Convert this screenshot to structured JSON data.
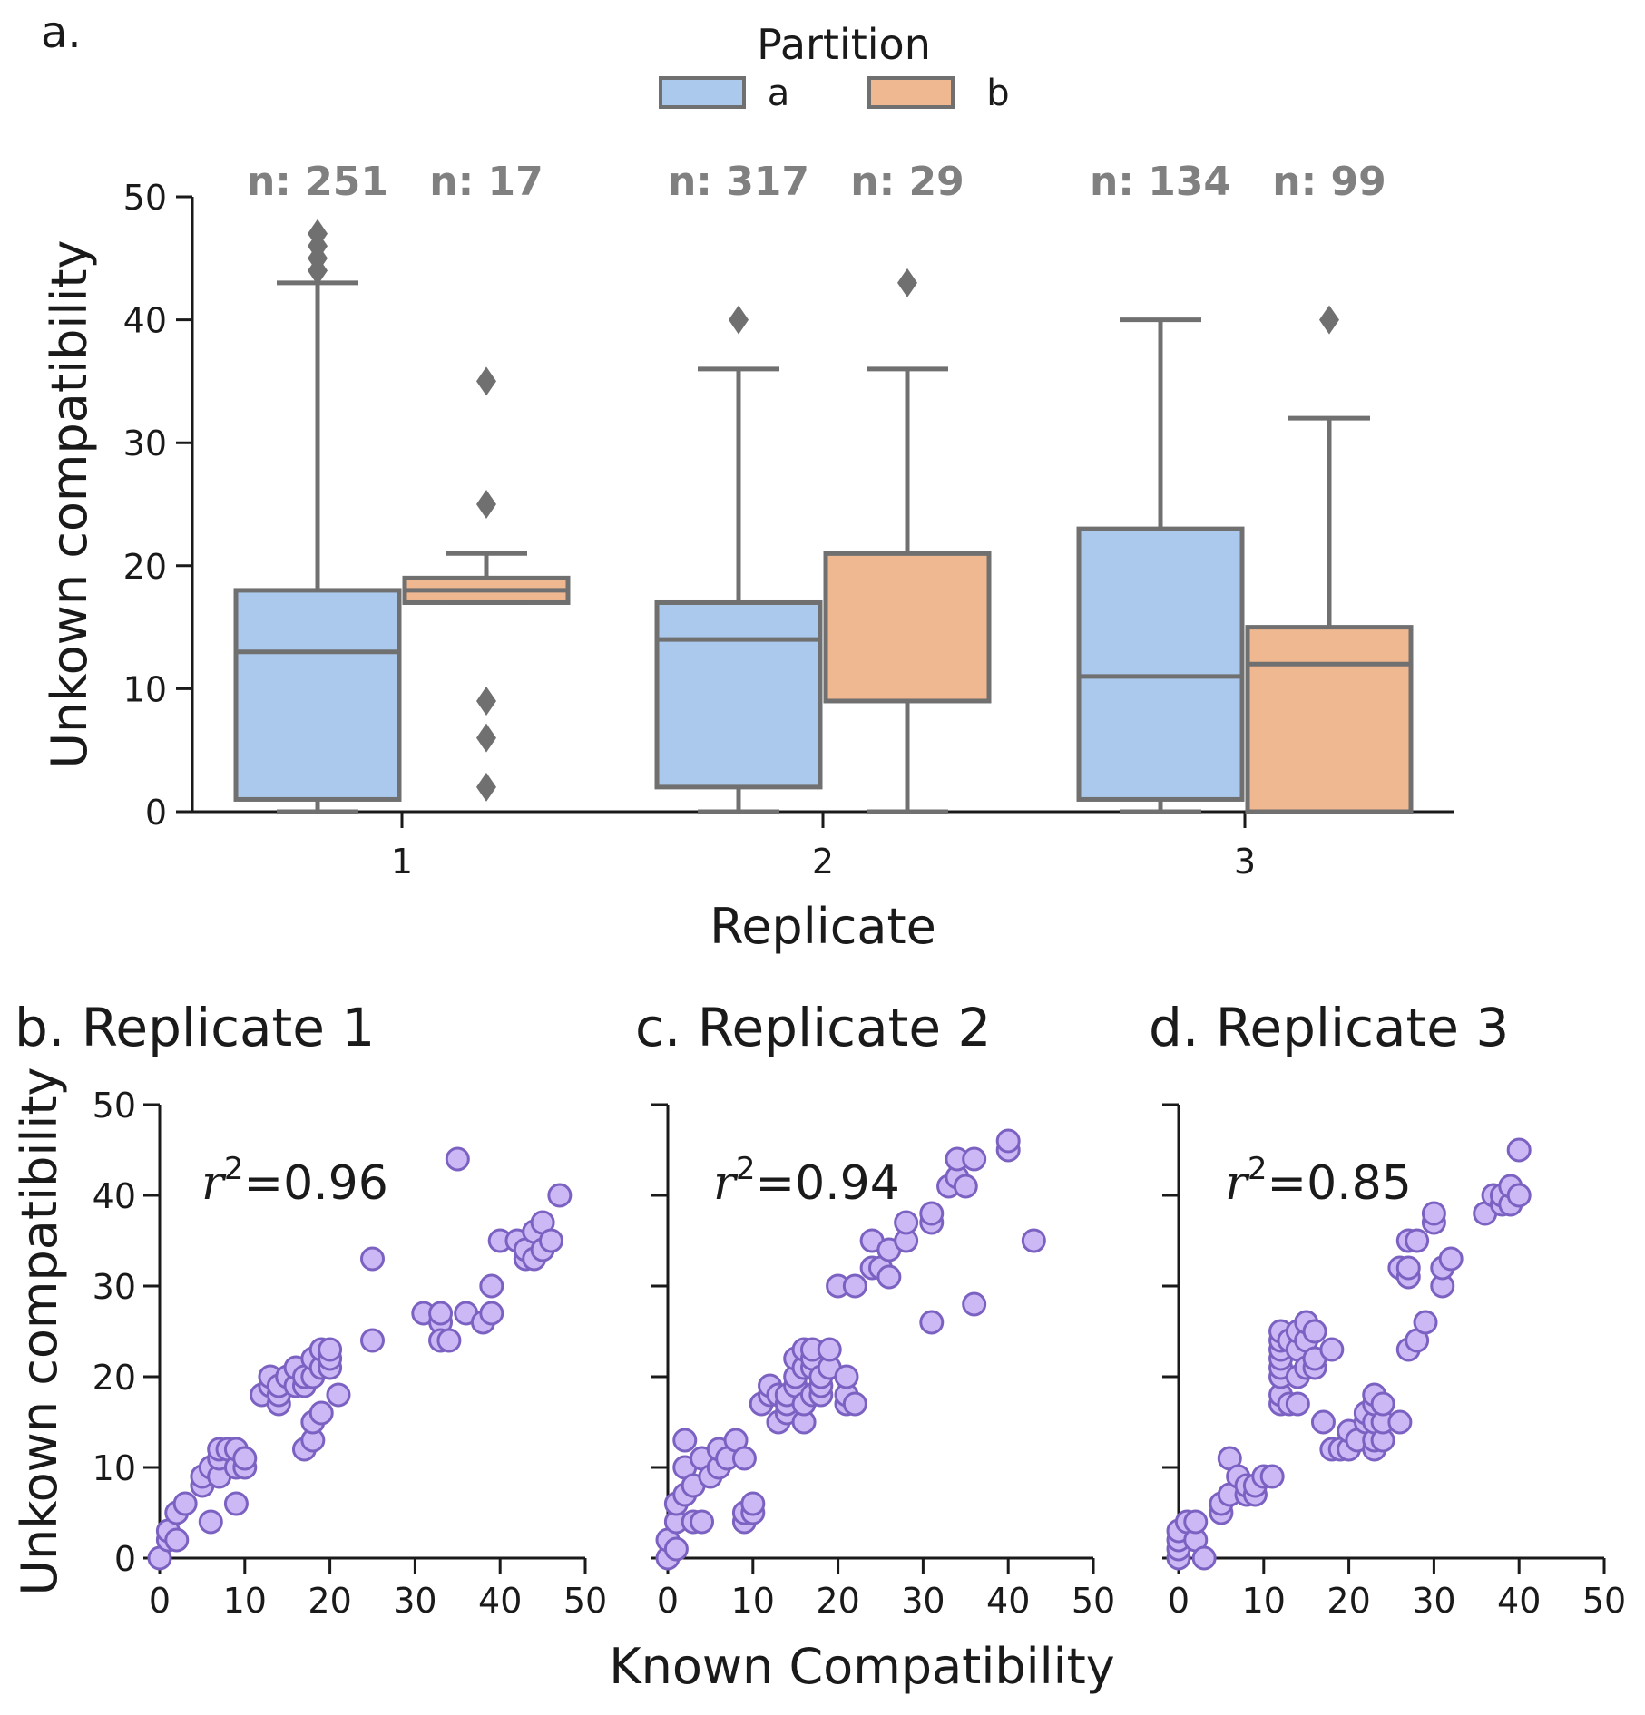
{
  "panel_a": {
    "panel_label": "a.",
    "legend_title": "Partition",
    "legend_labels": [
      "a",
      "b"
    ],
    "colors": {
      "a": "#abc9ec",
      "b": "#f0b890",
      "edge": "#707070",
      "axis": "#1a1a1a",
      "scatter_fill": "#cbb8f5",
      "scatter_edge": "#7b62c2",
      "n_label": "#808080"
    }
  },
  "panel_b": {
    "title": "b. Replicate 1",
    "r2_label": "=0.96"
  },
  "panel_c": {
    "title": "c. Replicate 2",
    "r2_label": "=0.94"
  },
  "panel_d": {
    "title": "d. Replicate 3",
    "r2_label": "=0.85"
  },
  "chart_data": [
    {
      "type": "box",
      "xlabel": "Replicate",
      "ylabel": "Unkown compatibility",
      "ylim": [
        0,
        50
      ],
      "yticks": [
        0,
        10,
        20,
        30,
        40,
        50
      ],
      "categories": [
        "1",
        "2",
        "3"
      ],
      "series": [
        {
          "name": "a",
          "boxes": [
            {
              "category": "1",
              "n_label": "n: 251",
              "whisker_low": 0,
              "q1": 1,
              "median": 13,
              "q3": 18,
              "whisker_high": 43,
              "outliers": [
                44,
                45,
                46,
                47
              ]
            },
            {
              "category": "2",
              "n_label": "n: 317",
              "whisker_low": 0,
              "q1": 2,
              "median": 14,
              "q3": 17,
              "whisker_high": 36,
              "outliers": [
                40
              ]
            },
            {
              "category": "3",
              "n_label": "n: 134",
              "whisker_low": 0,
              "q1": 1,
              "median": 11,
              "q3": 23,
              "whisker_high": 40,
              "outliers": []
            }
          ]
        },
        {
          "name": "b",
          "boxes": [
            {
              "category": "1",
              "n_label": "n: 17",
              "whisker_low": 17,
              "q1": 17,
              "median": 18,
              "q3": 19,
              "whisker_high": 21,
              "outliers": [
                2,
                6,
                9,
                25,
                35
              ]
            },
            {
              "category": "2",
              "n_label": "n: 29",
              "whisker_low": 0,
              "q1": 9,
              "median": 21,
              "q3": 21,
              "whisker_high": 36,
              "outliers": [
                43
              ]
            },
            {
              "category": "3",
              "n_label": "n: 99",
              "whisker_low": 0,
              "q1": 0,
              "median": 12,
              "q3": 15,
              "whisker_high": 32,
              "outliers": [
                40
              ]
            }
          ]
        }
      ]
    },
    {
      "type": "scatter",
      "title": "b. Replicate 1",
      "ylabel": "Unkown compatibility",
      "xlim": [
        0,
        50
      ],
      "ylim": [
        0,
        50
      ],
      "xticks": [
        0,
        10,
        20,
        30,
        40,
        50
      ],
      "yticks": [
        0,
        10,
        20,
        30,
        40,
        50
      ],
      "points": [
        [
          0,
          0
        ],
        [
          1,
          2
        ],
        [
          1,
          3
        ],
        [
          2,
          5
        ],
        [
          2,
          2
        ],
        [
          3,
          6
        ],
        [
          5,
          8
        ],
        [
          5,
          9
        ],
        [
          6,
          4
        ],
        [
          6,
          10
        ],
        [
          7,
          9
        ],
        [
          7,
          11
        ],
        [
          7,
          12
        ],
        [
          8,
          12
        ],
        [
          9,
          6
        ],
        [
          9,
          10
        ],
        [
          9,
          12
        ],
        [
          10,
          10
        ],
        [
          10,
          11
        ],
        [
          12,
          18
        ],
        [
          13,
          19
        ],
        [
          13,
          20
        ],
        [
          14,
          17
        ],
        [
          14,
          18
        ],
        [
          14,
          19
        ],
        [
          15,
          20
        ],
        [
          16,
          19
        ],
        [
          16,
          21
        ],
        [
          17,
          12
        ],
        [
          17,
          19
        ],
        [
          17,
          20
        ],
        [
          18,
          13
        ],
        [
          18,
          15
        ],
        [
          18,
          20
        ],
        [
          18,
          22
        ],
        [
          19,
          16
        ],
        [
          19,
          21
        ],
        [
          19,
          23
        ],
        [
          20,
          21
        ],
        [
          20,
          22
        ],
        [
          20,
          23
        ],
        [
          21,
          18
        ],
        [
          25,
          24
        ],
        [
          25,
          33
        ],
        [
          31,
          27
        ],
        [
          33,
          26
        ],
        [
          33,
          27
        ],
        [
          33,
          24
        ],
        [
          34,
          24
        ],
        [
          35,
          44
        ],
        [
          36,
          27
        ],
        [
          38,
          26
        ],
        [
          39,
          27
        ],
        [
          39,
          30
        ],
        [
          40,
          35
        ],
        [
          42,
          35
        ],
        [
          43,
          33
        ],
        [
          43,
          34
        ],
        [
          44,
          33
        ],
        [
          44,
          36
        ],
        [
          45,
          34
        ],
        [
          45,
          37
        ],
        [
          46,
          35
        ],
        [
          47,
          40
        ]
      ]
    },
    {
      "type": "scatter",
      "title": "c. Replicate 2",
      "xlabel": "Known Compatibility",
      "xlim": [
        0,
        50
      ],
      "ylim": [
        0,
        50
      ],
      "xticks": [
        0,
        10,
        20,
        30,
        40,
        50
      ],
      "yticks": [
        0,
        10,
        20,
        30,
        40,
        50
      ],
      "points": [
        [
          0,
          0
        ],
        [
          0,
          2
        ],
        [
          1,
          1
        ],
        [
          1,
          4
        ],
        [
          1,
          6
        ],
        [
          2,
          7
        ],
        [
          2,
          10
        ],
        [
          2,
          13
        ],
        [
          3,
          4
        ],
        [
          3,
          8
        ],
        [
          4,
          4
        ],
        [
          4,
          11
        ],
        [
          5,
          9
        ],
        [
          6,
          10
        ],
        [
          6,
          12
        ],
        [
          7,
          11
        ],
        [
          8,
          13
        ],
        [
          9,
          4
        ],
        [
          9,
          5
        ],
        [
          9,
          11
        ],
        [
          10,
          5
        ],
        [
          10,
          6
        ],
        [
          11,
          17
        ],
        [
          12,
          18
        ],
        [
          12,
          19
        ],
        [
          13,
          15
        ],
        [
          13,
          18
        ],
        [
          14,
          16
        ],
        [
          14,
          17
        ],
        [
          14,
          18
        ],
        [
          15,
          19
        ],
        [
          15,
          20
        ],
        [
          15,
          22
        ],
        [
          16,
          15
        ],
        [
          16,
          17
        ],
        [
          16,
          21
        ],
        [
          16,
          23
        ],
        [
          17,
          18
        ],
        [
          17,
          21
        ],
        [
          17,
          22
        ],
        [
          17,
          23
        ],
        [
          18,
          18
        ],
        [
          18,
          19
        ],
        [
          18,
          20
        ],
        [
          19,
          21
        ],
        [
          19,
          23
        ],
        [
          20,
          30
        ],
        [
          21,
          17
        ],
        [
          21,
          18
        ],
        [
          21,
          20
        ],
        [
          22,
          17
        ],
        [
          22,
          30
        ],
        [
          24,
          32
        ],
        [
          24,
          35
        ],
        [
          25,
          32
        ],
        [
          26,
          31
        ],
        [
          26,
          34
        ],
        [
          28,
          35
        ],
        [
          28,
          37
        ],
        [
          31,
          26
        ],
        [
          31,
          37
        ],
        [
          31,
          38
        ],
        [
          33,
          41
        ],
        [
          34,
          42
        ],
        [
          34,
          44
        ],
        [
          35,
          41
        ],
        [
          36,
          28
        ],
        [
          36,
          44
        ],
        [
          40,
          45
        ],
        [
          40,
          46
        ],
        [
          43,
          35
        ]
      ]
    },
    {
      "type": "scatter",
      "title": "d. Replicate 3",
      "xlim": [
        0,
        50
      ],
      "ylim": [
        0,
        50
      ],
      "xticks": [
        0,
        10,
        20,
        30,
        40,
        50
      ],
      "yticks": [
        0,
        10,
        20,
        30,
        40,
        50
      ],
      "points": [
        [
          0,
          0
        ],
        [
          0,
          1
        ],
        [
          0,
          2
        ],
        [
          0,
          3
        ],
        [
          1,
          4
        ],
        [
          2,
          2
        ],
        [
          2,
          4
        ],
        [
          3,
          0
        ],
        [
          5,
          5
        ],
        [
          5,
          6
        ],
        [
          6,
          7
        ],
        [
          6,
          11
        ],
        [
          7,
          9
        ],
        [
          8,
          7
        ],
        [
          8,
          8
        ],
        [
          9,
          7
        ],
        [
          9,
          8
        ],
        [
          10,
          9
        ],
        [
          11,
          9
        ],
        [
          12,
          17
        ],
        [
          12,
          18
        ],
        [
          12,
          20
        ],
        [
          12,
          21
        ],
        [
          12,
          22
        ],
        [
          12,
          23
        ],
        [
          12,
          24
        ],
        [
          12,
          25
        ],
        [
          13,
          17
        ],
        [
          13,
          24
        ],
        [
          14,
          17
        ],
        [
          14,
          20
        ],
        [
          14,
          23
        ],
        [
          14,
          25
        ],
        [
          15,
          21
        ],
        [
          15,
          24
        ],
        [
          15,
          26
        ],
        [
          16,
          21
        ],
        [
          16,
          22
        ],
        [
          16,
          25
        ],
        [
          17,
          15
        ],
        [
          18,
          12
        ],
        [
          18,
          23
        ],
        [
          19,
          12
        ],
        [
          20,
          12
        ],
        [
          20,
          14
        ],
        [
          21,
          13
        ],
        [
          22,
          15
        ],
        [
          22,
          16
        ],
        [
          23,
          12
        ],
        [
          23,
          13
        ],
        [
          23,
          15
        ],
        [
          23,
          17
        ],
        [
          23,
          18
        ],
        [
          24,
          13
        ],
        [
          24,
          15
        ],
        [
          24,
          17
        ],
        [
          26,
          15
        ],
        [
          26,
          32
        ],
        [
          27,
          23
        ],
        [
          27,
          31
        ],
        [
          27,
          32
        ],
        [
          27,
          35
        ],
        [
          28,
          24
        ],
        [
          28,
          35
        ],
        [
          29,
          26
        ],
        [
          30,
          37
        ],
        [
          30,
          38
        ],
        [
          31,
          30
        ],
        [
          31,
          32
        ],
        [
          32,
          33
        ],
        [
          36,
          38
        ],
        [
          37,
          40
        ],
        [
          38,
          39
        ],
        [
          38,
          40
        ],
        [
          39,
          39
        ],
        [
          39,
          41
        ],
        [
          40,
          40
        ],
        [
          40,
          45
        ]
      ]
    }
  ]
}
